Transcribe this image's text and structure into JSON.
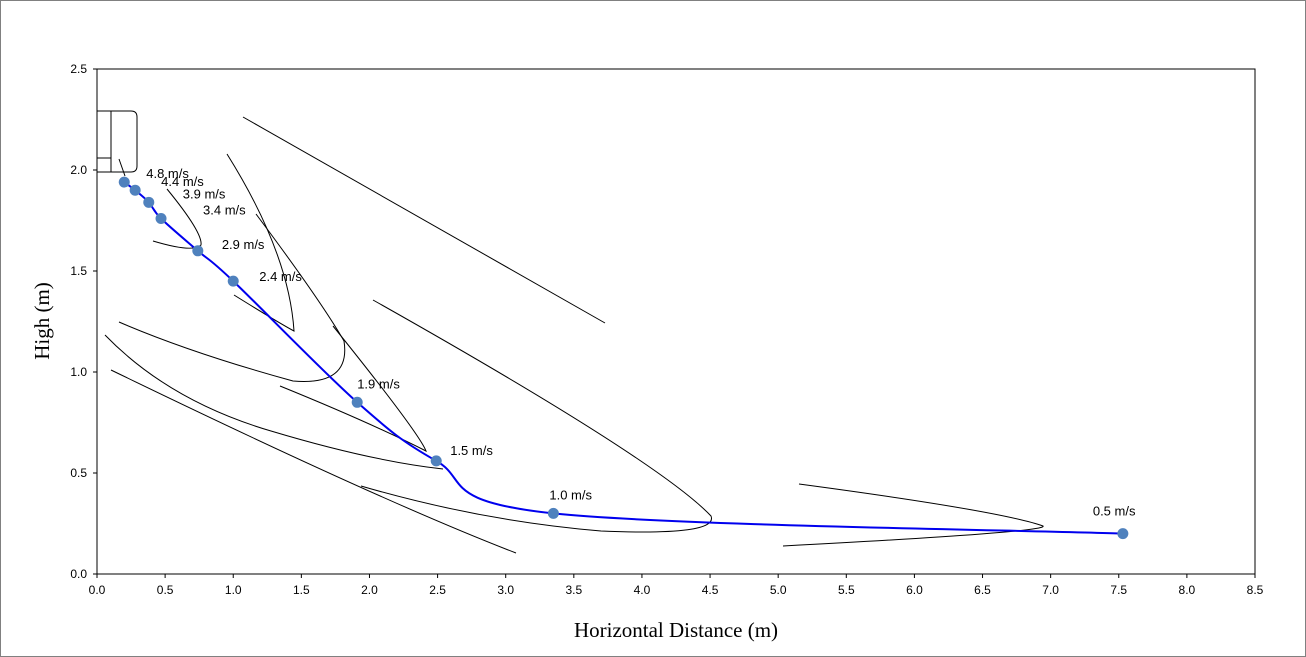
{
  "chart_data": {
    "type": "scatter",
    "title": "",
    "xlabel": "Horizontal Distance (m)",
    "ylabel": "High (m)",
    "xlim": [
      0,
      8.5
    ],
    "ylim": [
      0,
      2.5
    ],
    "x_ticks": [
      "0.0",
      "0.5",
      "1.0",
      "1.5",
      "2.0",
      "2.5",
      "3.0",
      "3.5",
      "4.0",
      "4.5",
      "5.0",
      "5.5",
      "6.0",
      "6.5",
      "7.0",
      "7.5",
      "8.0",
      "8.5"
    ],
    "y_ticks": [
      "0.0",
      "0.5",
      "1.0",
      "1.5",
      "2.0",
      "2.5"
    ],
    "grid": false,
    "line_color": "#0000ee",
    "marker_color": "#4f81bd",
    "points": [
      {
        "x": 0.2,
        "y": 1.94,
        "label": "4.8 m/s"
      },
      {
        "x": 0.28,
        "y": 1.9,
        "label": "4.4 m/s"
      },
      {
        "x": 0.38,
        "y": 1.84,
        "label": "3.9 m/s"
      },
      {
        "x": 0.47,
        "y": 1.76,
        "label": "3.4 m/s"
      },
      {
        "x": 0.74,
        "y": 1.6,
        "label": "2.9 m/s"
      },
      {
        "x": 1.0,
        "y": 1.45,
        "label": "2.4 m/s"
      },
      {
        "x": 1.91,
        "y": 0.85,
        "label": "1.9 m/s"
      },
      {
        "x": 2.49,
        "y": 0.56,
        "label": "1.5 m/s"
      },
      {
        "x": 3.35,
        "y": 0.3,
        "label": "1.0 m/s"
      },
      {
        "x": 7.53,
        "y": 0.2,
        "label": "0.5 m/s"
      }
    ]
  }
}
